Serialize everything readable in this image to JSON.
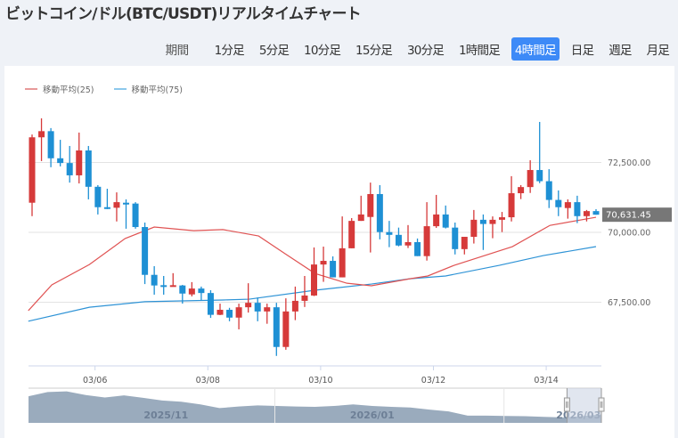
{
  "title": "ビットコイン/ドル(BTC/USDT)リアルタイムチャート",
  "periods": {
    "label": "期間",
    "options": [
      "1分足",
      "5分足",
      "10分足",
      "15分足",
      "30分足",
      "1時間足",
      "4時間足",
      "日足",
      "週足",
      "月足"
    ],
    "selected": "4時間足"
  },
  "legend": [
    {
      "label": "移動平均(25)",
      "color": "#e0585a"
    },
    {
      "label": "移動平均(75)",
      "color": "#4aa3df"
    }
  ],
  "colors": {
    "up": "#d63a3a",
    "down": "#1e90d4",
    "ma25": "#e05353",
    "ma75": "#2e93d6",
    "navigator": "#9aabbd",
    "price_badge": "#777777"
  },
  "chart_data": {
    "type": "candlestick",
    "title": "ビットコイン/ドル(BTC/USDT)",
    "interval": "4時間足",
    "ylim": [
      65500,
      75000
    ],
    "yticks": [
      {
        "value": 72500,
        "label": "72,500.00"
      },
      {
        "value": 70000,
        "label": "70,000.00"
      },
      {
        "value": 67500,
        "label": "67,500.00"
      }
    ],
    "xticks": [
      {
        "index": 6.7,
        "label": "03/06"
      },
      {
        "index": 18.7,
        "label": "03/08"
      },
      {
        "index": 30.7,
        "label": "03/10"
      },
      {
        "index": 42.7,
        "label": "03/12"
      },
      {
        "index": 54.7,
        "label": "03/14"
      }
    ],
    "last_price": 70631.45,
    "last_price_label": "70,631.45",
    "candles": [
      [
        71060,
        73400,
        73500,
        70580
      ],
      [
        73400,
        73620,
        74080,
        72550
      ],
      [
        73620,
        72650,
        73730,
        72330
      ],
      [
        72650,
        72480,
        73310,
        72360
      ],
      [
        72480,
        72040,
        73090,
        71780
      ],
      [
        72040,
        72930,
        73570,
        71750
      ],
      [
        72930,
        71630,
        73090,
        71180
      ],
      [
        71630,
        70900,
        71690,
        70640
      ],
      [
        70900,
        70880,
        71560,
        70830
      ],
      [
        70880,
        71080,
        71430,
        70390
      ],
      [
        71060,
        71030,
        71180,
        70130
      ],
      [
        71030,
        70190,
        71080,
        70130
      ],
      [
        70190,
        68480,
        70350,
        68150
      ],
      [
        68480,
        68100,
        68790,
        67770
      ],
      [
        68110,
        68090,
        68440,
        67770
      ],
      [
        68090,
        68110,
        68540,
        68090
      ],
      [
        68100,
        67810,
        68120,
        67450
      ],
      [
        67780,
        67990,
        68220,
        67710
      ],
      [
        67990,
        67830,
        68060,
        67580
      ],
      [
        67830,
        67050,
        67930,
        66940
      ],
      [
        67050,
        67230,
        67450,
        67040
      ],
      [
        67230,
        66950,
        67300,
        66820
      ],
      [
        66950,
        67320,
        67450,
        66530
      ],
      [
        67320,
        67480,
        68180,
        67130
      ],
      [
        67480,
        67170,
        67670,
        66820
      ],
      [
        67170,
        67320,
        67450,
        66730
      ],
      [
        67320,
        65900,
        67480,
        65580
      ],
      [
        65900,
        67170,
        67640,
        65800
      ],
      [
        67170,
        67550,
        68060,
        66860
      ],
      [
        67550,
        67740,
        68440,
        67330
      ],
      [
        67740,
        68850,
        69460,
        67720
      ],
      [
        68850,
        68980,
        69490,
        68230
      ],
      [
        68980,
        68390,
        69140,
        68390
      ],
      [
        68390,
        69430,
        70570,
        68390
      ],
      [
        69430,
        70410,
        70510,
        69430
      ],
      [
        70410,
        70640,
        71310,
        70410
      ],
      [
        70550,
        71370,
        71780,
        69280
      ],
      [
        71370,
        70010,
        71690,
        69750
      ],
      [
        70010,
        69910,
        70410,
        69470
      ],
      [
        69910,
        69530,
        70170,
        69500
      ],
      [
        69530,
        69650,
        70260,
        69440
      ],
      [
        69650,
        69150,
        69780,
        69150
      ],
      [
        69150,
        70220,
        71080,
        68990
      ],
      [
        70220,
        70640,
        71340,
        70160
      ],
      [
        70640,
        70170,
        70960,
        70140
      ],
      [
        70170,
        69400,
        70350,
        69210
      ],
      [
        69400,
        69840,
        69840,
        69210
      ],
      [
        69840,
        70450,
        70800,
        69600
      ],
      [
        70450,
        70300,
        70640,
        69370
      ],
      [
        70300,
        70450,
        70570,
        69790
      ],
      [
        70450,
        70540,
        70730,
        70010
      ],
      [
        70540,
        71400,
        72010,
        70390
      ],
      [
        71400,
        71620,
        71690,
        71190
      ],
      [
        71620,
        72230,
        72580,
        71410
      ],
      [
        72230,
        71830,
        73950,
        71760
      ],
      [
        71830,
        71160,
        72260,
        70870
      ],
      [
        71160,
        70900,
        71500,
        70580
      ],
      [
        70870,
        71080,
        71180,
        70490
      ],
      [
        71080,
        70580,
        71310,
        70330
      ],
      [
        70580,
        70760,
        70800,
        70390
      ],
      [
        70760,
        70631.45,
        70830,
        70630
      ]
    ],
    "ma25": [
      [
        -0.4,
        67200
      ],
      [
        2.1,
        68120
      ],
      [
        6.1,
        68850
      ],
      [
        9.9,
        69780
      ],
      [
        13,
        70190
      ],
      [
        17.2,
        70060
      ],
      [
        20.3,
        70100
      ],
      [
        24.1,
        69870
      ],
      [
        26.9,
        69240
      ],
      [
        30.1,
        68530
      ],
      [
        33.5,
        68180
      ],
      [
        36.1,
        68090
      ],
      [
        40.2,
        68340
      ],
      [
        42.1,
        68440
      ],
      [
        44.9,
        68820
      ],
      [
        51.1,
        69490
      ],
      [
        55.1,
        70250
      ],
      [
        60,
        70540
      ]
    ],
    "ma75": [
      [
        -0.4,
        66820
      ],
      [
        6.1,
        67320
      ],
      [
        12,
        67520
      ],
      [
        20.3,
        67580
      ],
      [
        23.1,
        67610
      ],
      [
        30.1,
        67930
      ],
      [
        36.1,
        68150
      ],
      [
        40.2,
        68340
      ],
      [
        44,
        68440
      ],
      [
        49.7,
        68820
      ],
      [
        54.4,
        69170
      ],
      [
        60,
        69490
      ]
    ]
  },
  "navigator": {
    "labels": [
      {
        "pos": 0.24,
        "label": "2025/11"
      },
      {
        "pos": 0.6,
        "label": "2026/01"
      },
      {
        "pos": 0.96,
        "label": "2026/03"
      }
    ],
    "series": [
      0.82,
      0.96,
      0.98,
      0.86,
      0.78,
      0.85,
      0.77,
      0.68,
      0.64,
      0.55,
      0.43,
      0.48,
      0.52,
      0.5,
      0.48,
      0.47,
      0.5,
      0.55,
      0.5,
      0.47,
      0.45,
      0.38,
      0.32,
      0.18,
      0.18,
      0.17,
      0.16,
      0.14,
      0.12,
      0.16,
      0.22
    ],
    "selection": [
      0.94,
      1.0
    ]
  }
}
